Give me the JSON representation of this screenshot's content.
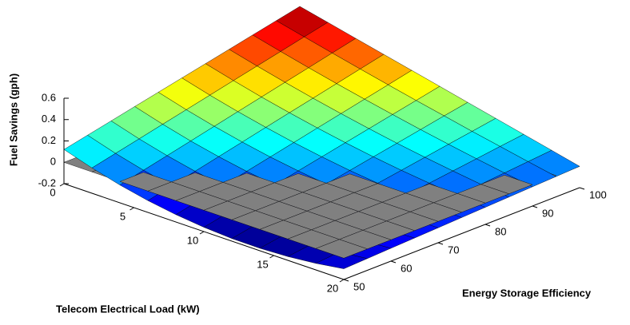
{
  "chart_data": {
    "type": "surface3d",
    "xlabel": "Telecom Electrical Load (kW)",
    "ylabel": "Energy Storage Efficiency",
    "zlabel": "Fuel Savings (gph)",
    "xlim": [
      0,
      20
    ],
    "xticks": [
      0,
      5,
      10,
      15,
      20
    ],
    "ylim": [
      50,
      100
    ],
    "yticks": [
      50,
      60,
      70,
      80,
      90,
      100
    ],
    "zlim": [
      -0.2,
      0.6
    ],
    "zticks": [
      -0.2,
      0,
      0.2,
      0.4,
      0.6
    ],
    "colormap": "jet",
    "edge_color": "#000000",
    "x": [
      0,
      2,
      4,
      6,
      8,
      10,
      12,
      14,
      16,
      18,
      20
    ],
    "y": [
      50,
      55,
      60,
      65,
      70,
      75,
      80,
      85,
      90,
      95,
      100
    ],
    "z": [
      [
        0.12,
        0.037,
        -0.033,
        -0.089,
        -0.131,
        -0.16,
        -0.175,
        -0.177,
        -0.165,
        -0.139,
        -0.1
      ],
      [
        0.168,
        0.087,
        0.019,
        -0.038,
        -0.082,
        -0.114,
        -0.134,
        -0.141,
        -0.136,
        -0.119,
        -0.09
      ],
      [
        0.216,
        0.137,
        0.07,
        0.013,
        -0.033,
        -0.068,
        -0.092,
        -0.105,
        -0.108,
        -0.099,
        -0.08
      ],
      [
        0.264,
        0.188,
        0.121,
        0.064,
        0.016,
        -0.022,
        -0.051,
        -0.07,
        -0.079,
        -0.079,
        -0.07
      ],
      [
        0.312,
        0.238,
        0.172,
        0.115,
        0.065,
        0.024,
        -0.009,
        -0.034,
        -0.051,
        -0.06,
        -0.06
      ],
      [
        0.36,
        0.288,
        0.224,
        0.166,
        0.114,
        0.07,
        0.032,
        0.002,
        -0.022,
        -0.04,
        -0.05
      ],
      [
        0.408,
        0.339,
        0.275,
        0.217,
        0.164,
        0.116,
        0.074,
        0.037,
        0.006,
        -0.02,
        -0.04
      ],
      [
        0.456,
        0.389,
        0.326,
        0.267,
        0.213,
        0.162,
        0.115,
        0.073,
        0.035,
        0,
        -0.03
      ],
      [
        0.504,
        0.439,
        0.377,
        0.318,
        0.262,
        0.208,
        0.157,
        0.109,
        0.063,
        0.02,
        -0.02
      ],
      [
        0.552,
        0.49,
        0.429,
        0.369,
        0.311,
        0.254,
        0.199,
        0.144,
        0.092,
        0.04,
        -0.01
      ],
      [
        0.6,
        0.54,
        0.48,
        0.42,
        0.36,
        0.3,
        0.24,
        0.18,
        0.12,
        0.06,
        0
      ]
    ],
    "reference_plane": {
      "z": 0,
      "color": "#808080"
    }
  }
}
